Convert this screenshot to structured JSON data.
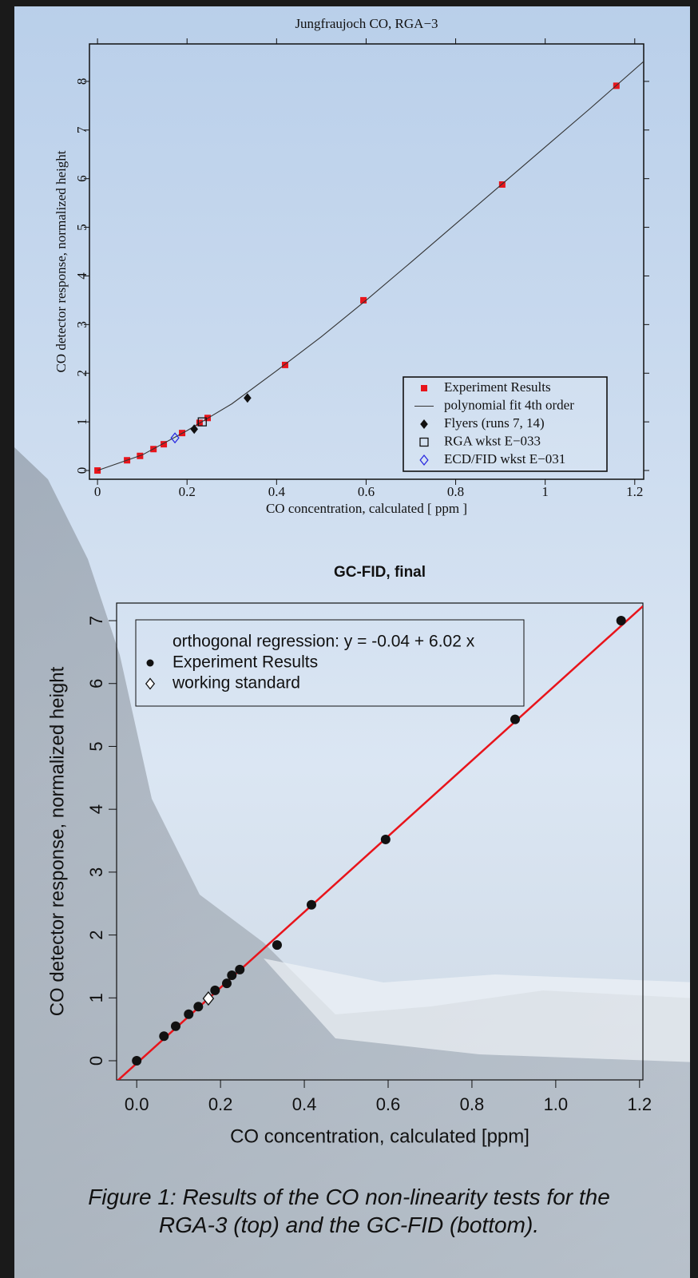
{
  "chart_data": [
    {
      "type": "scatter",
      "title": "Jungfraujoch  CO,   RGA−3",
      "xlabel": "CO concentration, calculated [ ppm ]",
      "ylabel": "CO detector response, normalized height",
      "xlim": [
        -0.018,
        1.22
      ],
      "ylim": [
        -0.18,
        8.77
      ],
      "xticks": [
        0,
        0.2,
        0.4,
        0.6,
        0.8,
        1,
        1.2
      ],
      "yticks": [
        0,
        1,
        2,
        3,
        4,
        5,
        6,
        7,
        8
      ],
      "legend": "bottom right",
      "series": [
        {
          "name": "Experiment Results",
          "color": "#e8141b",
          "marker": "square",
          "x": [
            0,
            0.066,
            0.095,
            0.125,
            0.148,
            0.189,
            0.228,
            0.246,
            0.419,
            0.594,
            0.904,
            1.159
          ],
          "values": [
            0,
            0.21,
            0.3,
            0.44,
            0.54,
            0.77,
            0.98,
            1.08,
            2.17,
            3.5,
            5.88,
            7.91
          ]
        },
        {
          "name": "polynomial fit 4th order",
          "color": "#333333",
          "marker": "line",
          "x": [
            0,
            0.1,
            0.2,
            0.3,
            0.4,
            0.5,
            0.6,
            0.7,
            0.8,
            0.9,
            1.0,
            1.1,
            1.22
          ],
          "values": [
            0,
            0.32,
            0.82,
            1.37,
            2.05,
            2.75,
            3.5,
            4.28,
            5.07,
            5.86,
            6.65,
            7.44,
            8.41
          ]
        },
        {
          "name": "Flyers (runs 7, 14)",
          "color": "#111111",
          "marker": "diamond",
          "x": [
            0.216,
            0.335
          ],
          "values": [
            0.85,
            1.49
          ]
        },
        {
          "name": "RGA wkst E−033",
          "color": "#111111",
          "marker": "open-square",
          "x": [
            0.234
          ],
          "values": [
            1.0
          ]
        },
        {
          "name": "ECD/FID wkst E−031",
          "color": "#2a2ae0",
          "marker": "open-diamond",
          "x": [
            0.173
          ],
          "values": [
            0.67
          ]
        }
      ]
    },
    {
      "type": "scatter",
      "title": "GC-FID, final",
      "xlabel": "CO concentration, calculated [ppm]",
      "ylabel": "CO detector response, normalized height",
      "xlim": [
        -0.048,
        1.208
      ],
      "ylim": [
        -0.305,
        7.28
      ],
      "xticks": [
        {
          "value": 0,
          "label": "0.0"
        },
        0.2,
        0.4,
        0.6,
        0.8,
        {
          "value": 1,
          "label": "1.0"
        },
        1.2
      ],
      "yticks": [
        0,
        1,
        2,
        3,
        4,
        5,
        6,
        7
      ],
      "legend": "top left",
      "series": [
        {
          "name": "orthogonal regression: y =  -0.04 +  6.02  x",
          "color": "#e8141b",
          "marker": "line",
          "x": [
            -0.048,
            1.208
          ],
          "values": [
            -0.33,
            7.23
          ]
        },
        {
          "name": "Experiment Results",
          "color": "#111111",
          "marker": "circle",
          "x": [
            0,
            0.065,
            0.093,
            0.124,
            0.147,
            0.187,
            0.215,
            0.227,
            0.246,
            0.335,
            0.417,
            0.594,
            0.903,
            1.156
          ],
          "values": [
            0,
            0.39,
            0.55,
            0.74,
            0.86,
            1.12,
            1.23,
            1.36,
            1.45,
            1.84,
            2.48,
            3.52,
            5.43,
            7.0
          ]
        },
        {
          "name": "working standard",
          "color": "#111111",
          "marker": "open-diamond",
          "x": [
            0.171
          ],
          "values": [
            0.99
          ]
        }
      ]
    }
  ],
  "caption": "Figure 1: Results of the CO non-linearity tests for the RGA-3 (top) and the GC-FID (bottom)."
}
